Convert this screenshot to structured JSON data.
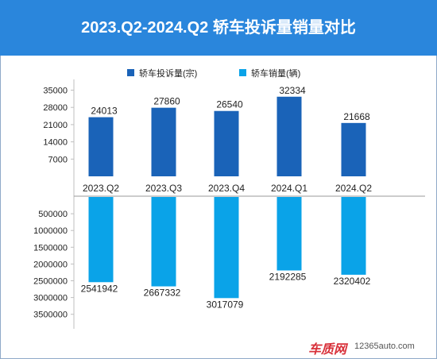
{
  "title": "2023.Q2-2024.Q2 轿车投诉量销量对比",
  "colors": {
    "header": "#2a86dc",
    "complaints": "#1a63b8",
    "sales": "#0aa3e8"
  },
  "watermark": {
    "logo": "车质网",
    "site": "12365auto.com"
  },
  "chart_data": {
    "type": "bar",
    "categories": [
      "2023.Q2",
      "2023.Q3",
      "2023.Q4",
      "2024.Q1",
      "2024.Q2"
    ],
    "series": [
      {
        "name": "轿车投诉量(宗)",
        "values": [
          24013,
          27860,
          26540,
          32334,
          21668
        ]
      },
      {
        "name": "轿车销量(辆)",
        "values": [
          2541942,
          2667332,
          3017079,
          2192285,
          2320402
        ]
      }
    ],
    "top_axis": {
      "ticks": [
        "7000",
        "14000",
        "21000",
        "28000",
        "35000"
      ],
      "tick_values": [
        7000,
        14000,
        21000,
        28000,
        35000
      ],
      "range": [
        0,
        38000
      ]
    },
    "bottom_axis": {
      "ticks": [
        "500000",
        "1000000",
        "1500000",
        "2000000",
        "2500000",
        "3000000",
        "3500000"
      ],
      "tick_values": [
        500000,
        1000000,
        1500000,
        2000000,
        2500000,
        3000000,
        3500000
      ],
      "range": [
        0,
        3600000
      ],
      "inverted": true
    },
    "legend_position": "top",
    "grid": false
  }
}
